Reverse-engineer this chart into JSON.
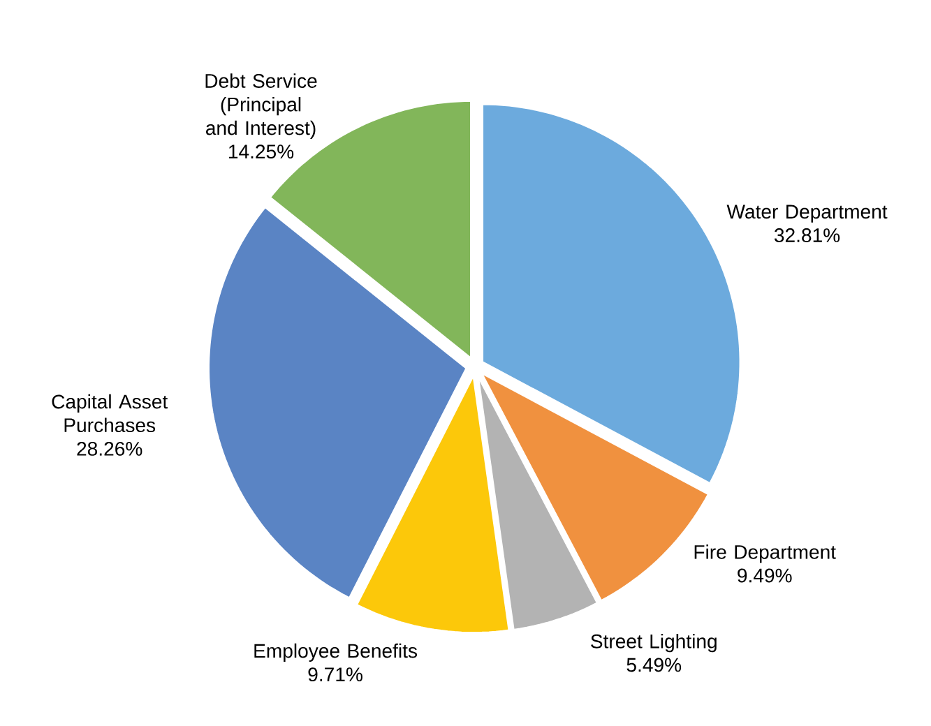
{
  "chart_data": {
    "type": "pie",
    "categories": [
      "Water Department",
      "Fire Department",
      "Street Lighting",
      "Employee Benefits",
      "Capital Asset Purchases",
      "Debt Service (Principal and Interest)"
    ],
    "values": [
      32.81,
      9.49,
      5.49,
      9.71,
      28.26,
      14.25
    ],
    "value_labels": [
      "32.81%",
      "9.49%",
      "5.49%",
      "9.71%",
      "28.26%",
      "14.25%"
    ],
    "colors": [
      "#6caadd",
      "#f0913f",
      "#b3b3b3",
      "#fcc80a",
      "#5a84c4",
      "#82b65a"
    ]
  }
}
